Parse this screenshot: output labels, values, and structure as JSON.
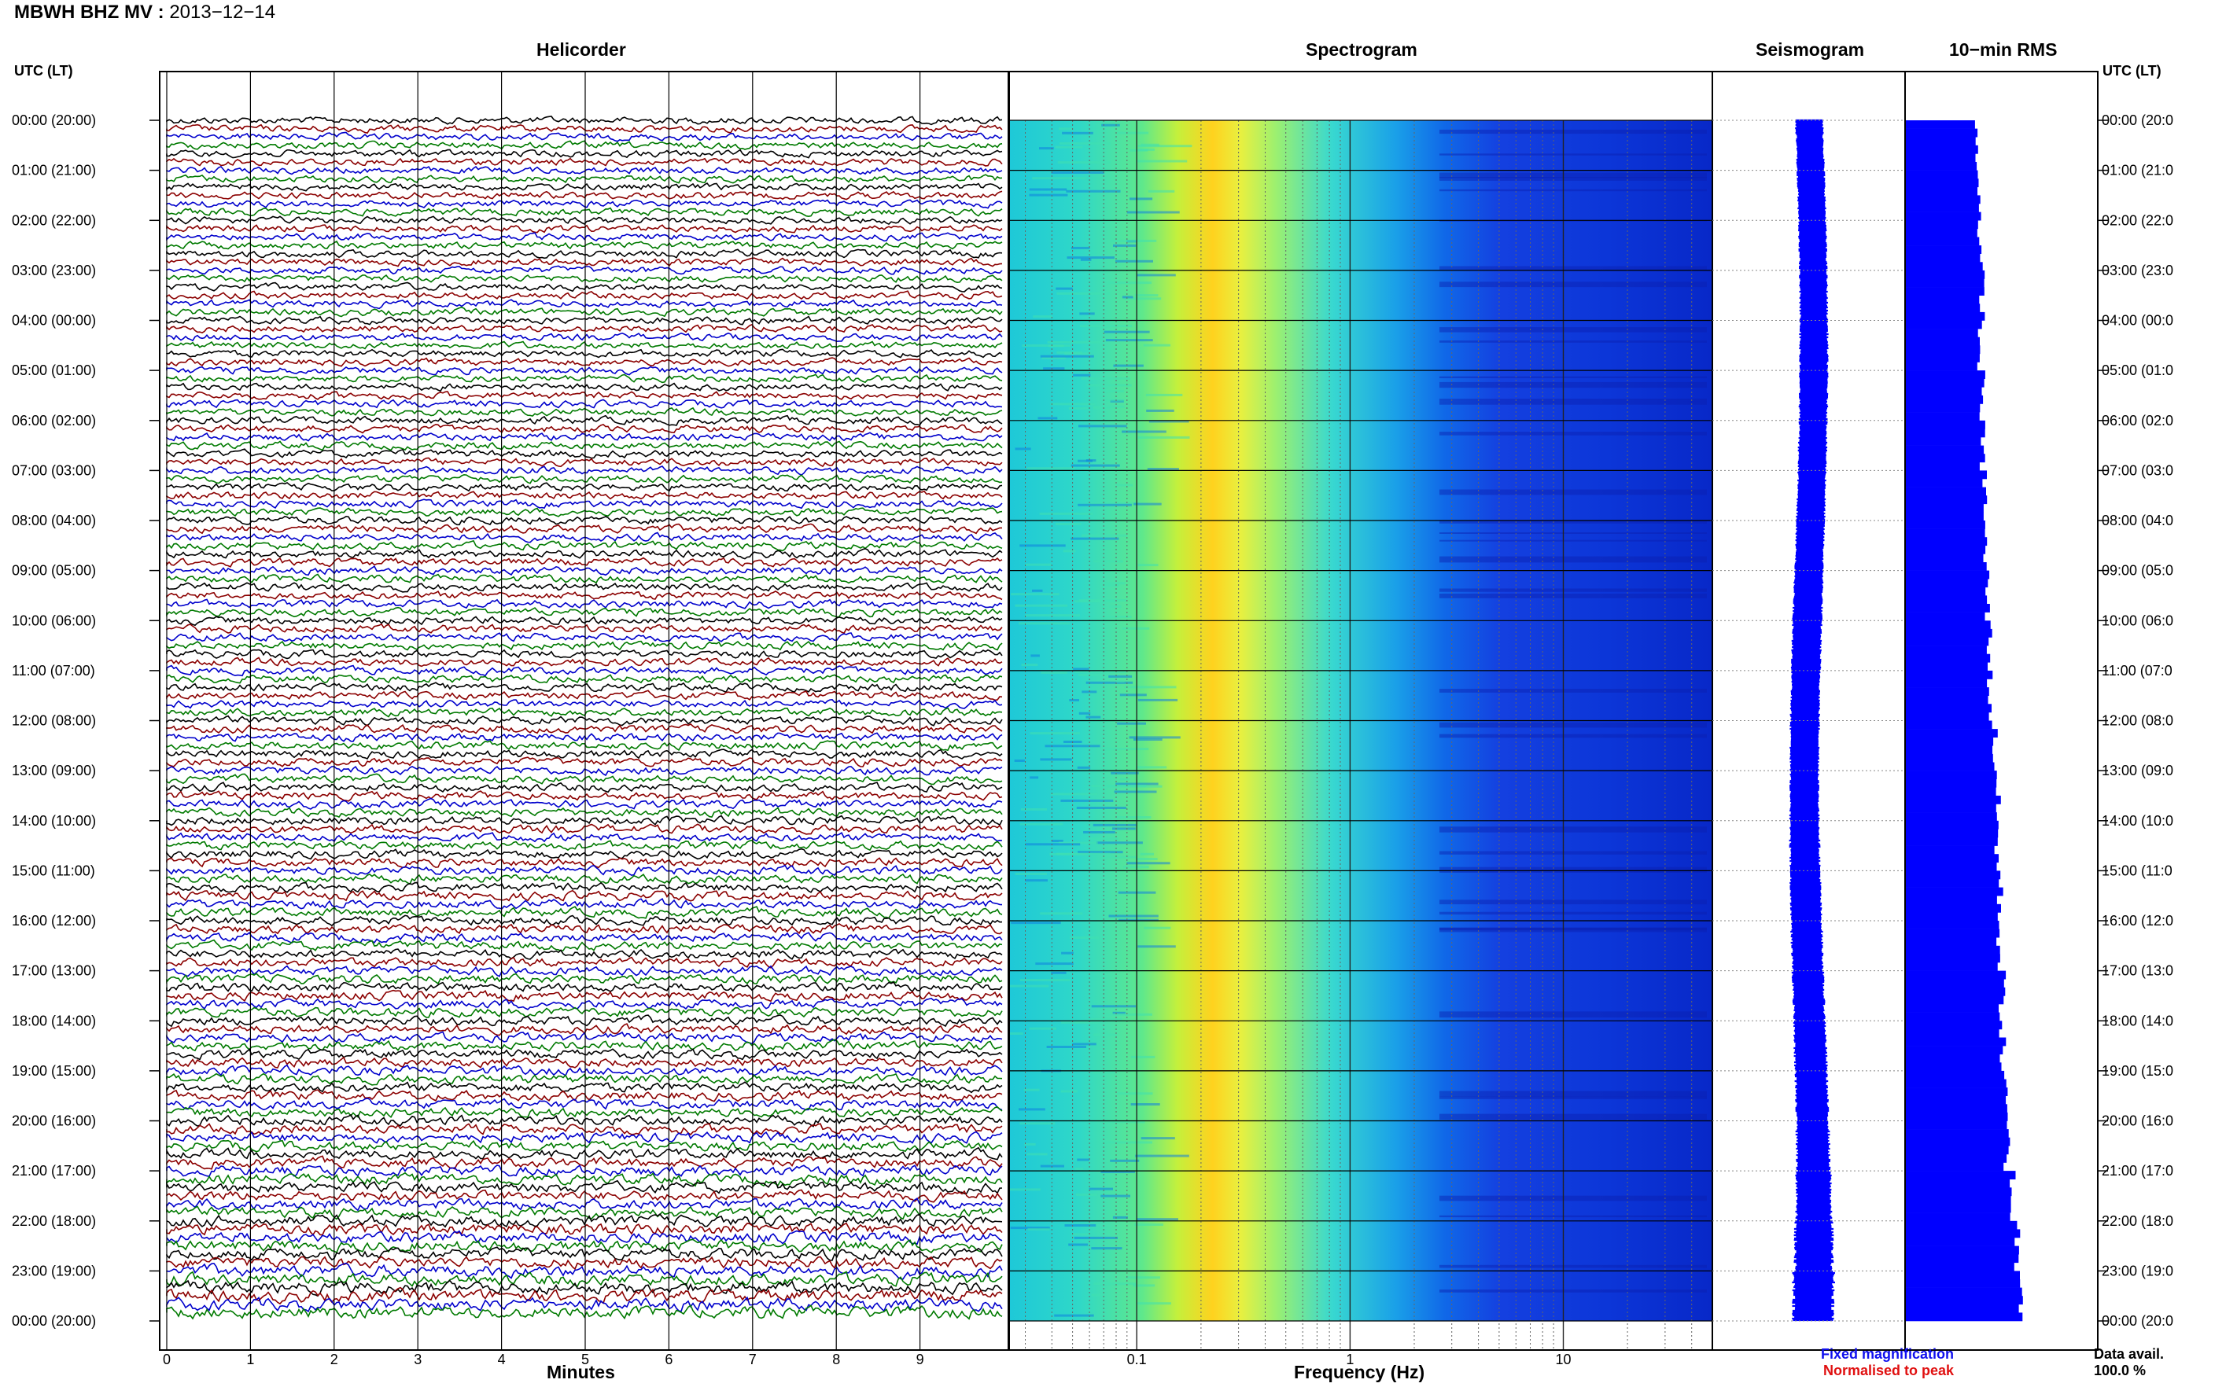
{
  "title": {
    "station": "MBWH BHZ MV :",
    "date": "2013−12−14"
  },
  "panels": {
    "helicorder": "Helicorder",
    "spectrogram": "Spectrogram",
    "seismogram": "Seismogram",
    "rms": "10−min RMS"
  },
  "time_axis_label": "UTC (LT)",
  "legend": {
    "fixed": "Fixed magnification",
    "normalised": "Normalised to peak"
  },
  "data_availability": {
    "label": "Data avail.",
    "value": "100.0 %"
  },
  "colors": {
    "trace_cycle": [
      "#000000",
      "#8b0000",
      "#0000cc",
      "#007a00"
    ],
    "seismogram": "#0000ff",
    "rms": "#0000ff",
    "fixed_text": "#1010ee",
    "normalised_text": "#e01010"
  },
  "chart_data": [
    {
      "type": "line",
      "title": "Helicorder",
      "xlabel": "Minutes",
      "x_ticks": [
        "0",
        "1",
        "2",
        "3",
        "4",
        "5",
        "6",
        "7",
        "8",
        "9"
      ],
      "xlim": [
        0,
        10
      ],
      "y_ticks_left": [
        "00:00 (20:00)",
        "01:00 (21:00)",
        "02:00 (22:00)",
        "03:00 (23:00)",
        "04:00 (00:00)",
        "05:00 (01:00)",
        "06:00 (02:00)",
        "07:00 (03:00)",
        "08:00 (04:00)",
        "09:00 (05:00)",
        "10:00 (06:00)",
        "11:00 (07:00)",
        "12:00 (08:00)",
        "13:00 (09:00)",
        "14:00 (10:00)",
        "15:00 (11:00)",
        "16:00 (12:00)",
        "17:00 (13:00)",
        "18:00 (14:00)",
        "19:00 (15:00)",
        "20:00 (16:00)",
        "21:00 (17:00)",
        "22:00 (18:00)",
        "23:00 (19:00)",
        "00:00 (20:00)"
      ],
      "y_ticks_right": [
        "00:00 (20:0",
        "01:00 (21:0",
        "02:00 (22:0",
        "03:00 (23:0",
        "04:00 (00:0",
        "05:00 (01:0",
        "06:00 (02:0",
        "07:00 (03:0",
        "08:00 (04:0",
        "09:00 (05:0",
        "10:00 (06:0",
        "11:00 (07:0",
        "12:00 (08:0",
        "13:00 (09:0",
        "14:00 (10:0",
        "15:00 (11:0",
        "16:00 (12:0",
        "17:00 (13:0",
        "18:00 (14:0",
        "19:00 (15:0",
        "20:00 (16:0",
        "21:00 (17:0",
        "22:00 (18:0",
        "23:00 (19:0",
        "00:00 (20:0"
      ],
      "traces": 144,
      "minutes_per_trace": 10,
      "relative_amplitude_by_hour": [
        1.0,
        1.0,
        1.0,
        1.0,
        1.0,
        1.0,
        1.05,
        1.05,
        1.1,
        1.1,
        1.1,
        1.1,
        1.15,
        1.15,
        1.2,
        1.25,
        1.25,
        1.3,
        1.3,
        1.35,
        1.4,
        1.5,
        1.6,
        1.75
      ]
    },
    {
      "type": "heatmap",
      "title": "Spectrogram",
      "xlabel": "Frequency (Hz)",
      "x_scale": "log",
      "xlim": [
        0.025,
        50
      ],
      "x_ticks": [
        0.1,
        1,
        10
      ],
      "x_tick_labels": [
        "0.1",
        "1",
        "10"
      ],
      "peak_band_hz": [
        0.2,
        0.3
      ],
      "colormap": "jet"
    },
    {
      "type": "line",
      "title": "Seismogram",
      "relative_envelope_by_hour": [
        0.4,
        0.4,
        0.4,
        0.4,
        0.42,
        0.42,
        0.42,
        0.42,
        0.42,
        0.45,
        0.45,
        0.45,
        0.45,
        0.45,
        0.48,
        0.5,
        0.52,
        0.52,
        0.55,
        0.55,
        0.58,
        0.65,
        0.75,
        0.85
      ]
    },
    {
      "type": "bar",
      "title": "10−min RMS",
      "relative_rms_by_hour": [
        0.57,
        0.6,
        0.6,
        0.62,
        0.6,
        0.62,
        0.62,
        0.64,
        0.64,
        0.66,
        0.68,
        0.68,
        0.72,
        0.74,
        0.74,
        0.76,
        0.76,
        0.78,
        0.78,
        0.8,
        0.82,
        0.86,
        0.9,
        0.95
      ]
    }
  ]
}
